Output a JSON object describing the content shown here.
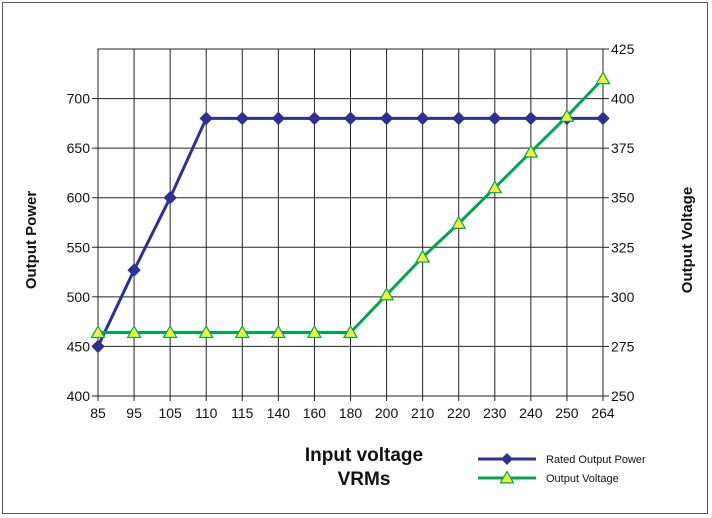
{
  "chart_data": {
    "type": "line",
    "x_categories": [
      "85",
      "95",
      "105",
      "110",
      "115",
      "140",
      "160",
      "180",
      "200",
      "210",
      "220",
      "230",
      "240",
      "250",
      "264"
    ],
    "xlabel_line1": "Input voltage",
    "xlabel_line2": "VRMs",
    "ylabel_left": "Output Power",
    "ylabel_right": "Output Voltage",
    "y_left": {
      "min": 400,
      "max": 750,
      "ticks": [
        400,
        450,
        500,
        550,
        600,
        650,
        700
      ]
    },
    "y_right": {
      "min": 250,
      "max": 425,
      "ticks": [
        250,
        275,
        300,
        325,
        350,
        375,
        400,
        425
      ]
    },
    "grid": true,
    "legend_position": "bottom-right",
    "series": [
      {
        "name": "Rated Output Power",
        "axis": "left",
        "color": "#2e3192",
        "marker": "diamond",
        "values": [
          450,
          527,
          600,
          680,
          680,
          680,
          680,
          680,
          680,
          680,
          680,
          680,
          680,
          680,
          680
        ]
      },
      {
        "name": "Output Voltage",
        "axis": "right",
        "color": "#00a651",
        "marker_fill": "#f5ef3b",
        "marker": "triangle",
        "values": [
          282,
          282,
          282,
          282,
          282,
          282,
          282,
          282,
          301,
          320,
          337,
          355,
          373,
          391,
          410
        ]
      }
    ]
  }
}
